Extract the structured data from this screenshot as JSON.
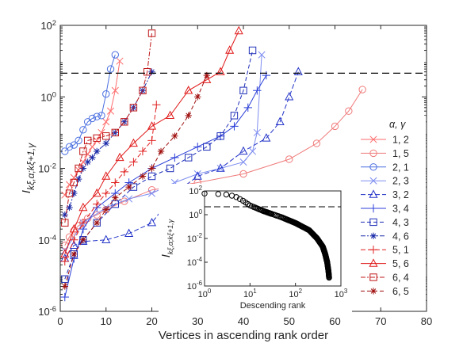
{
  "chart_data": [
    {
      "type": "line",
      "log_y": true,
      "xlabel": "Vertices in ascending rank order",
      "ylabel_main": "I",
      "ylabel_sub": "kξ,α;kξ+1,γ",
      "xlim": [
        0,
        80
      ],
      "ylim": [
        1e-06,
        100
      ],
      "x_ticks": [
        0,
        10,
        20,
        30,
        40,
        50,
        60,
        70,
        80
      ],
      "y_ticks": [
        {
          "value": 1e-06,
          "base": "10",
          "exp": "-6"
        },
        {
          "value": 0.0001,
          "base": "10",
          "exp": "-4"
        },
        {
          "value": 0.01,
          "base": "10",
          "exp": "-2"
        },
        {
          "value": 1,
          "base": "10",
          "exp": "0"
        },
        {
          "value": 100,
          "base": "10",
          "exp": "2"
        }
      ],
      "threshold": 4.6,
      "legend_title": "α, γ",
      "legend_position": "right",
      "series": [
        {
          "name": "1, 2",
          "color": "#ff6b6b",
          "marker": "x",
          "dash": "",
          "x": [
            1,
            2,
            3,
            4,
            5,
            6,
            7,
            8,
            9,
            10,
            11,
            12,
            13
          ],
          "y": [
            0.0018,
            0.0035,
            0.0055,
            0.009,
            0.015,
            0.025,
            0.04,
            0.06,
            0.1,
            0.2,
            0.4,
            1.5,
            10
          ]
        },
        {
          "name": "1, 5",
          "color": "#f07a7a",
          "marker": "o",
          "dash": "",
          "x": [
            1,
            2,
            3,
            4,
            5,
            6,
            8,
            10,
            14,
            20,
            30,
            40,
            50,
            56,
            60,
            63,
            66
          ],
          "y": [
            7e-05,
            0.00012,
            0.00018,
            0.00025,
            0.0003,
            0.0004,
            0.0005,
            0.0007,
            0.0012,
            0.0025,
            0.004,
            0.007,
            0.018,
            0.05,
            0.15,
            0.4,
            1.6
          ]
        },
        {
          "name": "2, 1",
          "color": "#4a6fe0",
          "marker": "o",
          "dash": "",
          "x": [
            1,
            2,
            3,
            4,
            5,
            6,
            7,
            8,
            9,
            10,
            11,
            12
          ],
          "y": [
            0.03,
            0.04,
            0.045,
            0.06,
            0.12,
            0.2,
            0.25,
            0.28,
            0.3,
            1.2,
            6,
            15
          ]
        },
        {
          "name": "2, 3",
          "color": "#7d8df0",
          "marker": "x",
          "dash": "",
          "x": [
            1,
            5,
            10,
            15,
            20,
            25,
            30,
            35,
            40,
            42,
            43,
            44
          ],
          "y": [
            5e-05,
            0.0003,
            0.0008,
            0.0014,
            0.002,
            0.004,
            0.007,
            0.01,
            0.015,
            0.03,
            0.1,
            15
          ]
        },
        {
          "name": "3, 2",
          "color": "#2233c8",
          "marker": "^",
          "dash": "6,3",
          "x": [
            1,
            3,
            5,
            10,
            15,
            20,
            25,
            30,
            35,
            40,
            45,
            48,
            50,
            52
          ],
          "y": [
            3e-05,
            7e-05,
            9e-05,
            0.0001,
            0.00015,
            0.0003,
            0.002,
            0.006,
            0.01,
            0.03,
            0.07,
            0.2,
            1,
            5
          ]
        },
        {
          "name": "3, 4",
          "color": "#2b3fd8",
          "marker": "+",
          "dash": "",
          "x": [
            1,
            3,
            5,
            8,
            12,
            15,
            20,
            25,
            30,
            35,
            38,
            41,
            43,
            45
          ],
          "y": [
            2.5e-06,
            3e-05,
            0.0002,
            0.0008,
            0.002,
            0.004,
            0.01,
            0.02,
            0.04,
            0.08,
            0.15,
            0.5,
            1.5,
            4
          ]
        },
        {
          "name": "4, 3",
          "color": "#1f2fb8",
          "marker": "s",
          "dash": "5,3",
          "x": [
            1,
            3,
            5,
            8,
            12,
            16,
            20,
            24,
            28,
            32,
            35,
            38,
            40,
            42
          ],
          "y": [
            8e-06,
            4e-05,
            0.0001,
            0.0003,
            0.001,
            0.003,
            0.006,
            0.01,
            0.02,
            0.04,
            0.08,
            0.3,
            1.5,
            20
          ]
        },
        {
          "name": "4, 6",
          "color": "#1a2aa8",
          "marker": "*",
          "dash": "6,2,2,2",
          "x": [
            1,
            2,
            3,
            4,
            5,
            6,
            7,
            8,
            10,
            12,
            14,
            16,
            18,
            20
          ],
          "y": [
            0.0005,
            0.0008,
            0.002,
            0.005,
            0.01,
            0.015,
            0.02,
            0.03,
            0.05,
            0.1,
            0.2,
            0.5,
            1.5,
            5
          ]
        },
        {
          "name": "5, 1",
          "color": "#e02020",
          "marker": "+",
          "dash": "6,3",
          "x": [
            1,
            3,
            5,
            8,
            10,
            12,
            14,
            16,
            18,
            20,
            21
          ],
          "y": [
            2.5e-05,
            0.0001,
            0.0003,
            0.001,
            0.002,
            0.004,
            0.008,
            0.015,
            0.03,
            0.06,
            0.6
          ]
        },
        {
          "name": "5, 6",
          "color": "#e01818",
          "marker": "^",
          "dash": "",
          "x": [
            1,
            3,
            5,
            8,
            10,
            13,
            16,
            20,
            24,
            28,
            32,
            35,
            37,
            39
          ],
          "y": [
            4e-05,
            0.0002,
            0.0008,
            0.002,
            0.006,
            0.02,
            0.05,
            0.15,
            0.3,
            1.5,
            3,
            5,
            20,
            70
          ]
        },
        {
          "name": "6, 4",
          "color": "#c0181a",
          "marker": "s",
          "dash": "6,2,2,2",
          "x": [
            1,
            2,
            3,
            4,
            5,
            6,
            8,
            10,
            12,
            14,
            16,
            18,
            19,
            20
          ],
          "y": [
            0.0003,
            0.002,
            0.004,
            0.01,
            0.03,
            0.06,
            0.07,
            0.08,
            0.1,
            0.2,
            0.5,
            1.5,
            5,
            60
          ]
        },
        {
          "name": "6, 5",
          "color": "#a01010",
          "marker": "*",
          "dash": "5,3",
          "x": [
            1,
            3,
            5,
            8,
            10,
            12,
            15,
            18,
            20,
            22,
            25,
            28,
            30,
            32
          ],
          "y": [
            5e-06,
            4e-05,
            0.0001,
            0.0003,
            0.0007,
            0.0015,
            0.003,
            0.006,
            0.01,
            0.03,
            0.08,
            0.3,
            1,
            4
          ]
        }
      ]
    },
    {
      "type": "scatter",
      "log_x": true,
      "log_y": true,
      "xlabel": "Descending rank",
      "ylabel_main": "I",
      "ylabel_sub": "kξ,α;kξ+1,γ",
      "xlim": [
        1,
        1000
      ],
      "ylim": [
        1e-06,
        100
      ],
      "x_ticks": [
        {
          "value": 1,
          "base": "10",
          "exp": "0"
        },
        {
          "value": 10,
          "base": "10",
          "exp": "1"
        },
        {
          "value": 100,
          "base": "10",
          "exp": "2"
        },
        {
          "value": 1000,
          "base": "10",
          "exp": "3"
        }
      ],
      "y_ticks": [
        {
          "value": 1e-06,
          "base": "10",
          "exp": "-6"
        },
        {
          "value": 0.0001,
          "base": "10",
          "exp": "-4"
        },
        {
          "value": 0.01,
          "base": "10",
          "exp": "-2"
        },
        {
          "value": 1,
          "base": "10",
          "exp": "0"
        },
        {
          "value": 100,
          "base": "10",
          "exp": "2"
        }
      ],
      "threshold": 4.6,
      "curve": {
        "x": [
          1,
          2,
          3,
          4,
          5,
          7,
          10,
          20,
          50,
          100,
          200,
          300,
          400,
          450,
          500,
          530,
          550
        ],
        "y": [
          60,
          55,
          50,
          40,
          30,
          15,
          6,
          2,
          0.6,
          0.2,
          0.05,
          0.01,
          0.002,
          0.0005,
          0.0001,
          2e-05,
          5e-06
        ]
      }
    }
  ]
}
